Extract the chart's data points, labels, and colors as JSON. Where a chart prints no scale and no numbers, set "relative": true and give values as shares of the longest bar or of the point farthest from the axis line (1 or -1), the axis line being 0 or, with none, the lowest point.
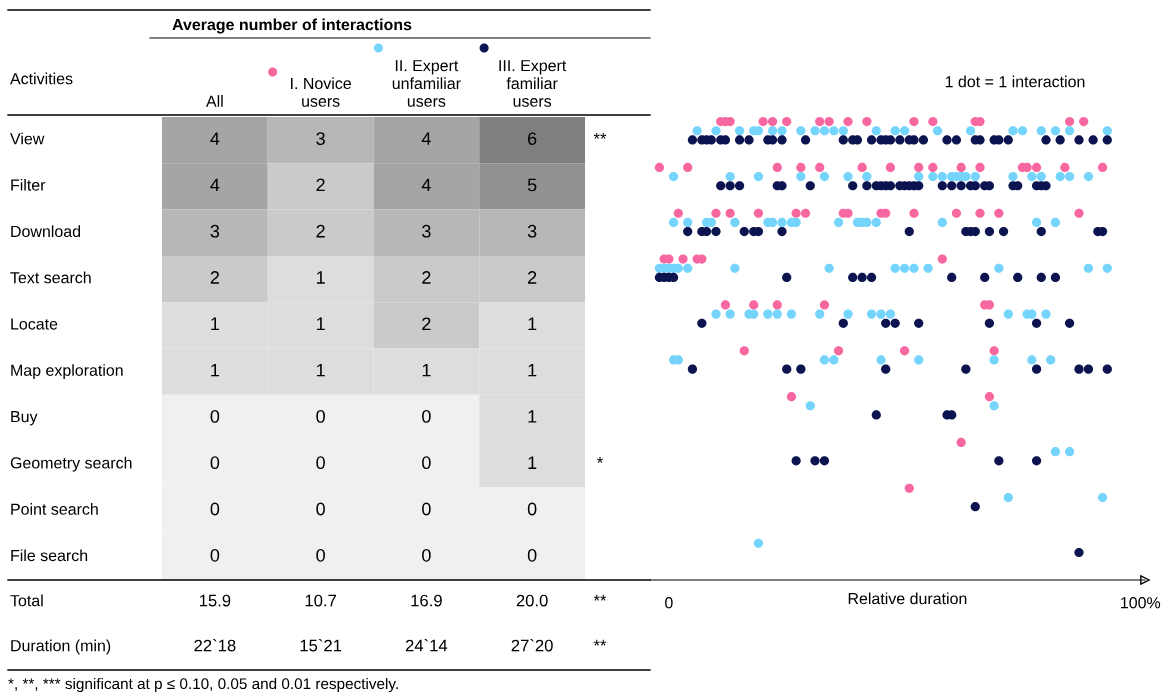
{
  "chart_data": [
    {
      "type": "heatmap",
      "title": "Average number of interactions",
      "ylabel": "Activities",
      "data_labels": true,
      "categories": [
        "All",
        "I. Novice\nusers",
        "II. Expert\nunfamiliar\nusers",
        "III. Expert\nfamiliar\nusers"
      ],
      "y_categories": [
        "View",
        "Filter",
        "Download",
        "Text search",
        "Locate",
        "Map exploration",
        "Buy",
        "Geometry search",
        "Point search",
        "File search"
      ],
      "y2_categories": [
        "**",
        null,
        null,
        null,
        null,
        null,
        null,
        "*",
        null,
        null
      ],
      "cells": [
        [
          4,
          3,
          4,
          6
        ],
        [
          4,
          2,
          4,
          5
        ],
        [
          3,
          2,
          3,
          3
        ],
        [
          2,
          1,
          2,
          2
        ],
        [
          1,
          1,
          2,
          1
        ],
        [
          1,
          1,
          1,
          1
        ],
        [
          0,
          0,
          0,
          1
        ],
        [
          0,
          0,
          0,
          1
        ],
        [
          0,
          0,
          0,
          0
        ],
        [
          0,
          0,
          0,
          0
        ]
      ],
      "annotations": [
        "Total",
        "15.9",
        "10.7",
        "16.9",
        "20.0",
        "**",
        "Duration (min)",
        "22`18",
        "15`21",
        "24`14",
        "27`20",
        "**",
        "*, **, *** significant at p ≤ 0.10, 0.05 and 0.01 respectively."
      ]
    },
    {
      "type": "scatter",
      "relative": true,
      "marker": "circle",
      "grid": false,
      "xlabel": "Relative duration",
      "xlim": [
        -4,
        101
      ],
      "xticks": [
        0,
        {
          "value": 100,
          "label": "100%"
        }
      ],
      "annotations": [
        "1 dot = 1 interaction"
      ],
      "series": [
        {
          "color": "#f768a1",
          "x": [
            11,
            12,
            13,
            20,
            22,
            25,
            32,
            34,
            38,
            42,
            52,
            56,
            65,
            66,
            85,
            88,
            -2,
            4,
            23,
            28,
            32,
            41,
            47,
            53,
            56,
            62,
            66,
            75,
            76,
            78,
            84,
            92,
            2,
            10,
            13,
            19,
            27,
            29,
            37,
            38,
            45,
            46,
            52,
            61,
            66,
            70,
            87,
            -1,
            0,
            3,
            6,
            7,
            58,
            12,
            18,
            23,
            33,
            67,
            68,
            16,
            36,
            50,
            69,
            26,
            68,
            62,
            51
          ],
          "values": [
            1,
            1,
            1,
            1,
            1,
            1,
            1,
            1,
            1,
            1,
            1,
            1,
            1,
            1,
            1,
            1,
            0.9,
            0.9,
            0.9,
            0.9,
            0.9,
            0.9,
            0.9,
            0.9,
            0.9,
            0.9,
            0.9,
            0.9,
            0.9,
            0.9,
            0.9,
            0.9,
            0.8,
            0.8,
            0.8,
            0.8,
            0.8,
            0.8,
            0.8,
            0.8,
            0.8,
            0.8,
            0.8,
            0.8,
            0.8,
            0.8,
            0.8,
            0.7,
            0.7,
            0.7,
            0.7,
            0.7,
            0.7,
            0.6,
            0.6,
            0.6,
            0.6,
            0.6,
            0.6,
            0.5,
            0.5,
            0.5,
            0.5,
            0.4,
            0.4,
            0.3,
            0.2
          ]
        },
        {
          "color": "#74d4fc",
          "x": [
            6,
            10,
            15,
            18,
            19,
            22,
            24,
            28,
            31,
            33,
            35,
            37,
            44,
            48,
            50,
            57,
            64,
            73,
            75,
            79,
            82,
            85,
            93,
            1,
            13,
            19,
            28,
            33,
            38,
            42,
            53,
            56,
            58,
            60,
            61,
            62,
            63,
            65,
            73,
            77,
            79,
            83,
            85,
            89,
            1,
            4,
            8,
            9,
            14,
            21,
            22,
            24,
            26,
            27,
            36,
            40,
            41,
            42,
            44,
            58,
            78,
            82,
            -2,
            -1,
            0,
            1,
            2,
            4,
            14,
            34,
            48,
            50,
            52,
            55,
            70,
            89,
            93,
            10,
            13,
            17,
            18,
            21,
            23,
            26,
            32,
            38,
            43,
            45,
            47,
            72,
            76,
            77,
            80,
            1,
            2,
            33,
            35,
            45,
            53,
            69,
            77,
            81,
            30,
            69,
            82,
            85,
            72,
            92,
            19
          ],
          "values": [
            0.98,
            0.98,
            0.98,
            0.98,
            0.98,
            0.98,
            0.98,
            0.98,
            0.98,
            0.98,
            0.98,
            0.98,
            0.98,
            0.98,
            0.98,
            0.98,
            0.98,
            0.98,
            0.98,
            0.98,
            0.98,
            0.98,
            0.98,
            0.88,
            0.88,
            0.88,
            0.88,
            0.88,
            0.88,
            0.88,
            0.88,
            0.88,
            0.88,
            0.88,
            0.88,
            0.88,
            0.88,
            0.88,
            0.88,
            0.88,
            0.88,
            0.88,
            0.88,
            0.88,
            0.78,
            0.78,
            0.78,
            0.78,
            0.78,
            0.78,
            0.78,
            0.78,
            0.78,
            0.78,
            0.78,
            0.78,
            0.78,
            0.78,
            0.78,
            0.78,
            0.78,
            0.78,
            0.68,
            0.68,
            0.68,
            0.68,
            0.68,
            0.68,
            0.68,
            0.68,
            0.68,
            0.68,
            0.68,
            0.68,
            0.68,
            0.68,
            0.68,
            0.58,
            0.58,
            0.58,
            0.58,
            0.58,
            0.58,
            0.58,
            0.58,
            0.58,
            0.58,
            0.58,
            0.58,
            0.58,
            0.58,
            0.58,
            0.58,
            0.48,
            0.48,
            0.48,
            0.48,
            0.48,
            0.48,
            0.48,
            0.48,
            0.48,
            0.38,
            0.38,
            0.28,
            0.28,
            0.18,
            0.18,
            0.08
          ]
        },
        {
          "color": "#0c1450",
          "x": [
            5,
            7,
            8,
            9,
            11,
            12,
            15,
            17,
            21,
            22,
            24,
            29,
            37,
            39,
            40,
            43,
            45,
            46,
            47,
            49,
            51,
            52,
            54,
            59,
            61,
            65,
            66,
            69,
            70,
            72,
            80,
            83,
            87,
            90,
            93,
            11,
            13,
            15,
            23,
            24,
            30,
            39,
            42,
            44,
            45,
            46,
            47,
            49,
            50,
            51,
            52,
            53,
            58,
            60,
            62,
            64,
            65,
            67,
            68,
            73,
            74,
            78,
            79,
            80,
            4,
            7,
            8,
            10,
            16,
            18,
            19,
            24,
            51,
            63,
            64,
            65,
            68,
            71,
            79,
            91,
            92,
            -2,
            -1,
            0,
            1,
            25,
            39,
            41,
            43,
            60,
            67,
            74,
            79,
            82,
            7,
            37,
            46,
            48,
            53,
            68,
            78,
            85,
            5,
            25,
            28,
            46,
            63,
            78,
            87,
            89,
            93,
            44,
            59,
            60,
            27,
            31,
            33,
            70,
            78,
            65,
            87
          ],
          "values": [
            0.96,
            0.96,
            0.96,
            0.96,
            0.96,
            0.96,
            0.96,
            0.96,
            0.96,
            0.96,
            0.96,
            0.96,
            0.96,
            0.96,
            0.96,
            0.96,
            0.96,
            0.96,
            0.96,
            0.96,
            0.96,
            0.96,
            0.96,
            0.96,
            0.96,
            0.96,
            0.96,
            0.96,
            0.96,
            0.96,
            0.96,
            0.96,
            0.96,
            0.96,
            0.96,
            0.86,
            0.86,
            0.86,
            0.86,
            0.86,
            0.86,
            0.86,
            0.86,
            0.86,
            0.86,
            0.86,
            0.86,
            0.86,
            0.86,
            0.86,
            0.86,
            0.86,
            0.86,
            0.86,
            0.86,
            0.86,
            0.86,
            0.86,
            0.86,
            0.86,
            0.86,
            0.86,
            0.86,
            0.86,
            0.76,
            0.76,
            0.76,
            0.76,
            0.76,
            0.76,
            0.76,
            0.76,
            0.76,
            0.76,
            0.76,
            0.76,
            0.76,
            0.76,
            0.76,
            0.76,
            0.76,
            0.66,
            0.66,
            0.66,
            0.66,
            0.66,
            0.66,
            0.66,
            0.66,
            0.66,
            0.66,
            0.66,
            0.66,
            0.66,
            0.56,
            0.56,
            0.56,
            0.56,
            0.56,
            0.56,
            0.56,
            0.56,
            0.46,
            0.46,
            0.46,
            0.46,
            0.46,
            0.46,
            0.46,
            0.46,
            0.46,
            0.36,
            0.36,
            0.36,
            0.26,
            0.26,
            0.26,
            0.26,
            0.26,
            0.16,
            0.06
          ]
        }
      ]
    }
  ]
}
